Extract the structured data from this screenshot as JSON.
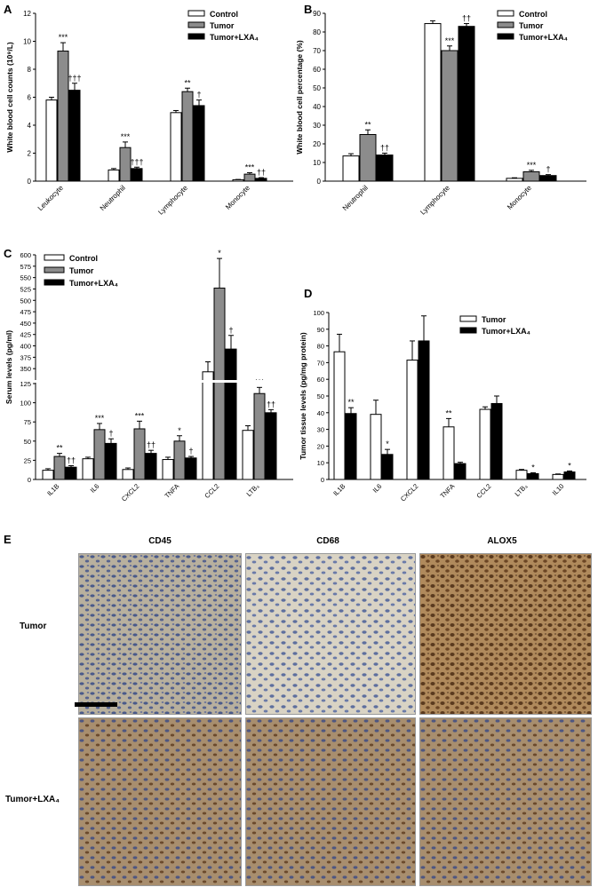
{
  "panel_letters": {
    "a": "A",
    "b": "B",
    "c": "C",
    "d": "D",
    "e": "E"
  },
  "colors": {
    "control": "#ffffff",
    "tumor": "#8c8c8c",
    "tumor_lxa4": "#000000"
  },
  "chart_data": [
    {
      "id": "A",
      "type": "bar",
      "ylabel": "White blood cell counts (10⁹/L)",
      "ylim": [
        0,
        12
      ],
      "yticks": [
        0,
        2,
        4,
        6,
        8,
        10,
        12
      ],
      "categories": [
        "Leukocyte",
        "Neutrophil",
        "Lymphocyte",
        "Monocyte"
      ],
      "legend": [
        "Control",
        "Tumor",
        "Tumor+LXA₄"
      ],
      "legend_position": "top-right",
      "series": [
        {
          "name": "Control",
          "values": [
            5.8,
            0.8,
            4.9,
            0.1
          ],
          "errors": [
            0.2,
            0.1,
            0.15,
            0.02
          ]
        },
        {
          "name": "Tumor",
          "values": [
            9.3,
            2.4,
            6.4,
            0.5
          ],
          "errors": [
            0.6,
            0.4,
            0.25,
            0.1
          ]
        },
        {
          "name": "Tumor+LXA₄",
          "values": [
            6.5,
            0.9,
            5.4,
            0.2
          ],
          "errors": [
            0.5,
            0.1,
            0.4,
            0.05
          ]
        }
      ],
      "annotations": [
        {
          "category": 0,
          "series": 1,
          "text": "***"
        },
        {
          "category": 0,
          "series": 2,
          "text": "†††"
        },
        {
          "category": 1,
          "series": 1,
          "text": "***"
        },
        {
          "category": 1,
          "series": 2,
          "text": "†††"
        },
        {
          "category": 2,
          "series": 1,
          "text": "**"
        },
        {
          "category": 2,
          "series": 2,
          "text": "†"
        },
        {
          "category": 3,
          "series": 1,
          "text": "***"
        },
        {
          "category": 3,
          "series": 2,
          "text": "††"
        }
      ]
    },
    {
      "id": "B",
      "type": "bar",
      "ylabel": "White blood cell percentage (%)",
      "ylim": [
        0,
        90
      ],
      "yticks": [
        0,
        10,
        20,
        30,
        40,
        50,
        60,
        70,
        80,
        90
      ],
      "categories": [
        "Neutrophil",
        "Lymphocyte",
        "Monocyte"
      ],
      "legend": [
        "Control",
        "Tumor",
        "Tumor+LXA₄"
      ],
      "legend_position": "top-right",
      "series": [
        {
          "name": "Control",
          "values": [
            13.5,
            84.5,
            1.5
          ],
          "errors": [
            1.2,
            1.5,
            0.3
          ]
        },
        {
          "name": "Tumor",
          "values": [
            25,
            70,
            5
          ],
          "errors": [
            2.5,
            2.5,
            0.8
          ]
        },
        {
          "name": "Tumor+LXA₄",
          "values": [
            14,
            83,
            3
          ],
          "errors": [
            1,
            1.5,
            0.5
          ]
        }
      ],
      "annotations": [
        {
          "category": 0,
          "series": 1,
          "text": "**"
        },
        {
          "category": 0,
          "series": 2,
          "text": "††"
        },
        {
          "category": 1,
          "series": 1,
          "text": "***"
        },
        {
          "category": 1,
          "series": 2,
          "text": "††"
        },
        {
          "category": 2,
          "series": 1,
          "text": "***"
        },
        {
          "category": 2,
          "series": 2,
          "text": "†"
        }
      ]
    },
    {
      "id": "C",
      "type": "bar",
      "ylabel": "Serum levels (pg/ml)",
      "axis_break": true,
      "ylim_lower": [
        0,
        125
      ],
      "yticks_lower": [
        0,
        25,
        50,
        75,
        100,
        125
      ],
      "ylim_upper": [
        325,
        600
      ],
      "yticks_upper": [
        350,
        375,
        400,
        425,
        450,
        475,
        500,
        525,
        550,
        575,
        600
      ],
      "categories": [
        "IL1B",
        "IL6",
        "CXCL2",
        "TNFA",
        "CCL2",
        "LTB₄"
      ],
      "legend": [
        "Control",
        "Tumor",
        "Tumor+LXA₄"
      ],
      "legend_position": "top-left",
      "series": [
        {
          "name": "Control",
          "values": [
            12,
            27,
            13,
            26,
            343,
            64
          ],
          "errors": [
            2,
            2,
            2,
            3,
            22,
            6
          ]
        },
        {
          "name": "Tumor",
          "values": [
            30,
            65,
            66,
            50,
            527,
            112
          ],
          "errors": [
            4,
            8,
            10,
            7,
            65,
            8
          ]
        },
        {
          "name": "Tumor+LXA₄",
          "values": [
            16,
            47,
            34,
            28,
            393,
            87
          ],
          "errors": [
            2,
            6,
            4,
            2,
            30,
            4
          ]
        }
      ],
      "annotations": [
        {
          "category": 0,
          "series": 1,
          "text": "**"
        },
        {
          "category": 0,
          "series": 2,
          "text": "††"
        },
        {
          "category": 1,
          "series": 1,
          "text": "***"
        },
        {
          "category": 1,
          "series": 2,
          "text": "†"
        },
        {
          "category": 2,
          "series": 1,
          "text": "***"
        },
        {
          "category": 2,
          "series": 2,
          "text": "††"
        },
        {
          "category": 3,
          "series": 1,
          "text": "*"
        },
        {
          "category": 3,
          "series": 2,
          "text": "†"
        },
        {
          "category": 4,
          "series": 1,
          "text": "*"
        },
        {
          "category": 4,
          "series": 2,
          "text": "†"
        },
        {
          "category": 5,
          "series": 1,
          "text": "***"
        },
        {
          "category": 5,
          "series": 2,
          "text": "††"
        }
      ]
    },
    {
      "id": "D",
      "type": "bar",
      "ylabel": "Tumor tissue levels (pg/mg protein)",
      "ylim": [
        0,
        100
      ],
      "yticks": [
        0,
        10,
        20,
        30,
        40,
        50,
        60,
        70,
        80,
        90,
        100
      ],
      "categories": [
        "IL1B",
        "IL6",
        "CXCL2",
        "TNFA",
        "CCL2",
        "LTB₄",
        "IL10"
      ],
      "legend": [
        "Tumor",
        "Tumor+LXA₄"
      ],
      "legend_position": "top-right",
      "series": [
        {
          "name": "Tumor",
          "values": [
            76.5,
            39,
            71.5,
            31.5,
            42,
            5.5,
            3
          ],
          "errors": [
            10.5,
            8.5,
            11.5,
            5,
            1.5,
            0.5,
            0.3
          ]
        },
        {
          "name": "Tumor+LXA₄",
          "values": [
            39.5,
            15,
            83,
            9.5,
            45.5,
            3.5,
            4.5
          ],
          "errors": [
            3.5,
            3,
            15,
            0.8,
            4.5,
            0.5,
            0.6
          ]
        }
      ],
      "annotations": [
        {
          "category": 0,
          "series": 1,
          "text": "**"
        },
        {
          "category": 1,
          "series": 1,
          "text": "*"
        },
        {
          "category": 3,
          "series": 0,
          "text": "**"
        },
        {
          "category": 5,
          "series": 1,
          "text": "*"
        },
        {
          "category": 6,
          "series": 1,
          "text": "*"
        }
      ]
    }
  ],
  "panel_e": {
    "columns": [
      "CD45",
      "CD68",
      "ALOX5"
    ],
    "rows": [
      "Tumor",
      "Tumor+LXA₄"
    ]
  }
}
